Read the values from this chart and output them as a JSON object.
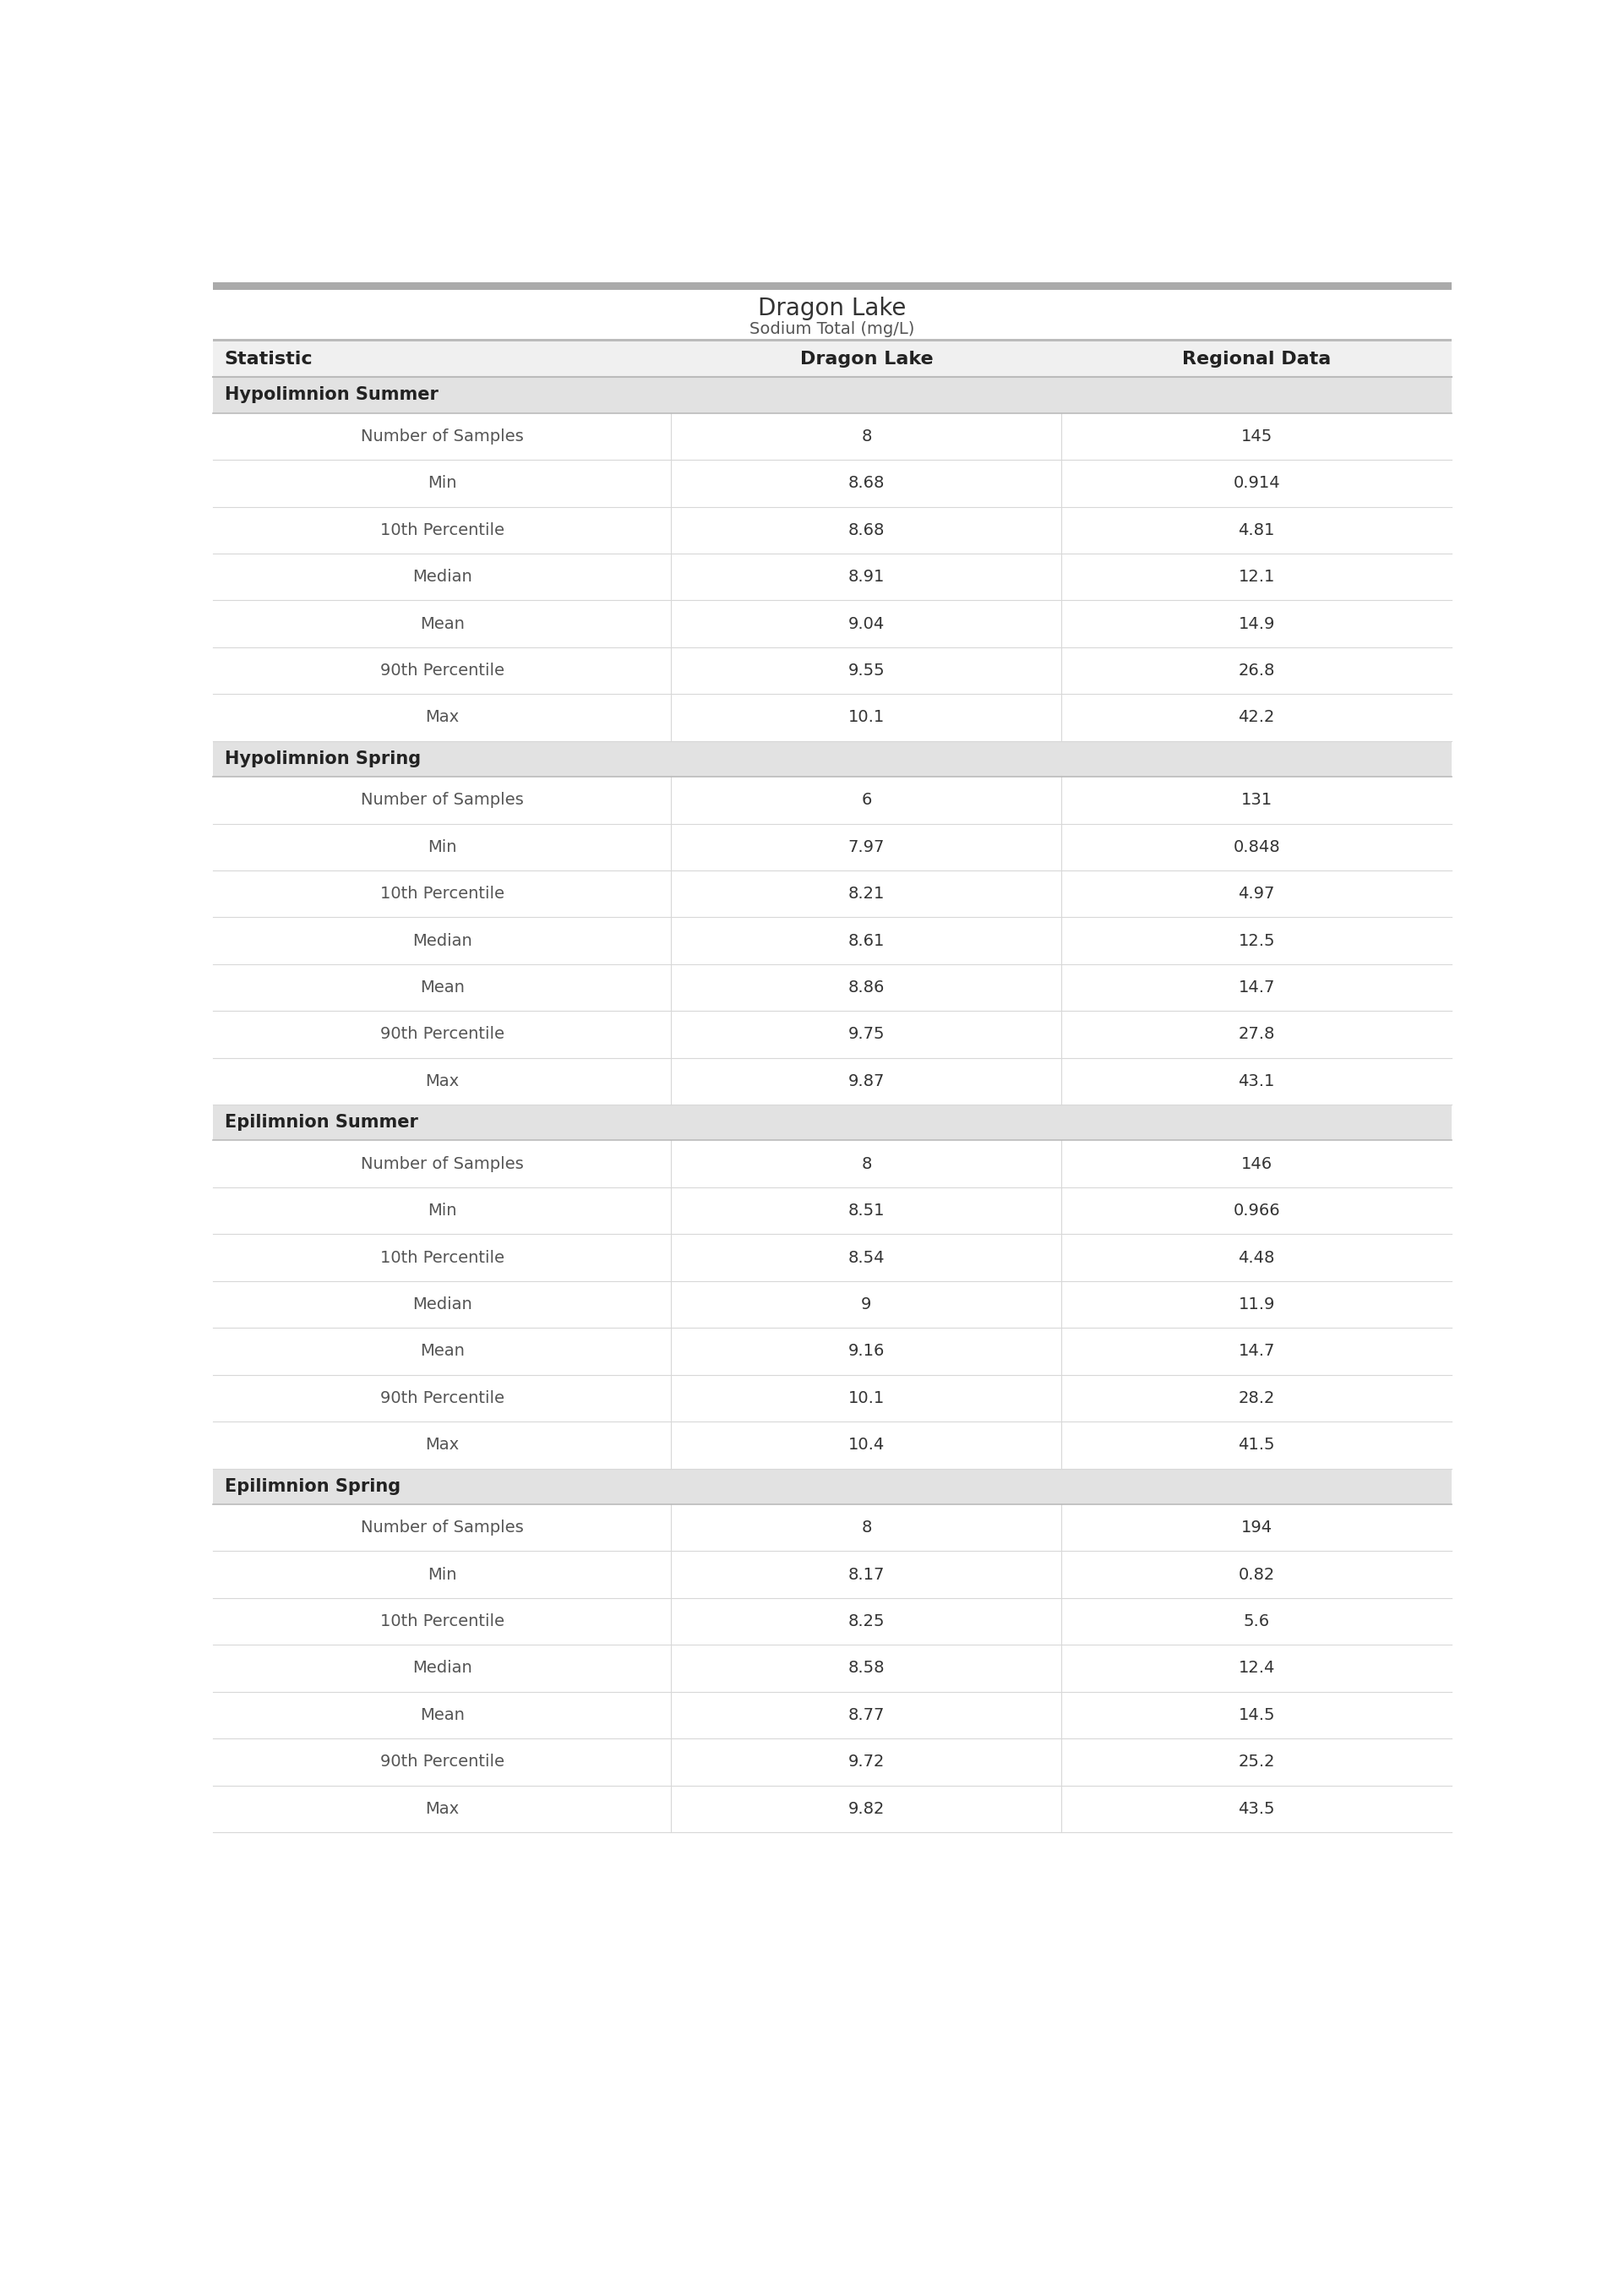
{
  "title": "Dragon Lake",
  "subtitle": "Sodium Total (mg/L)",
  "col_headers": [
    "Statistic",
    "Dragon Lake",
    "Regional Data"
  ],
  "sections": [
    {
      "header": "Hypolimnion Summer",
      "rows": [
        [
          "Number of Samples",
          "8",
          "145"
        ],
        [
          "Min",
          "8.68",
          "0.914"
        ],
        [
          "10th Percentile",
          "8.68",
          "4.81"
        ],
        [
          "Median",
          "8.91",
          "12.1"
        ],
        [
          "Mean",
          "9.04",
          "14.9"
        ],
        [
          "90th Percentile",
          "9.55",
          "26.8"
        ],
        [
          "Max",
          "10.1",
          "42.2"
        ]
      ]
    },
    {
      "header": "Hypolimnion Spring",
      "rows": [
        [
          "Number of Samples",
          "6",
          "131"
        ],
        [
          "Min",
          "7.97",
          "0.848"
        ],
        [
          "10th Percentile",
          "8.21",
          "4.97"
        ],
        [
          "Median",
          "8.61",
          "12.5"
        ],
        [
          "Mean",
          "8.86",
          "14.7"
        ],
        [
          "90th Percentile",
          "9.75",
          "27.8"
        ],
        [
          "Max",
          "9.87",
          "43.1"
        ]
      ]
    },
    {
      "header": "Epilimnion Summer",
      "rows": [
        [
          "Number of Samples",
          "8",
          "146"
        ],
        [
          "Min",
          "8.51",
          "0.966"
        ],
        [
          "10th Percentile",
          "8.54",
          "4.48"
        ],
        [
          "Median",
          "9",
          "11.9"
        ],
        [
          "Mean",
          "9.16",
          "14.7"
        ],
        [
          "90th Percentile",
          "10.1",
          "28.2"
        ],
        [
          "Max",
          "10.4",
          "41.5"
        ]
      ]
    },
    {
      "header": "Epilimnion Spring",
      "rows": [
        [
          "Number of Samples",
          "8",
          "194"
        ],
        [
          "Min",
          "8.17",
          "0.82"
        ],
        [
          "10th Percentile",
          "8.25",
          "5.6"
        ],
        [
          "Median",
          "8.58",
          "12.4"
        ],
        [
          "Mean",
          "8.77",
          "14.5"
        ],
        [
          "90th Percentile",
          "9.72",
          "25.2"
        ],
        [
          "Max",
          "9.82",
          "43.5"
        ]
      ]
    }
  ],
  "title_color": "#333333",
  "subtitle_color": "#555555",
  "header_bg_color": "#e2e2e2",
  "header_text_color": "#222222",
  "col_header_text_color": "#222222",
  "statistic_text_color": "#555555",
  "value_col1_color": "#333333",
  "value_col2_color": "#333333",
  "row_divider_color": "#d8d8d8",
  "section_divider_color": "#bbbbbb",
  "top_bar_color": "#aaaaaa",
  "col_header_bg": "#f0f0f0",
  "white": "#ffffff",
  "col_splits": [
    0.37,
    0.685
  ],
  "title_fontsize": 20,
  "subtitle_fontsize": 14,
  "col_header_fontsize": 16,
  "section_header_fontsize": 15,
  "data_fontsize": 14
}
